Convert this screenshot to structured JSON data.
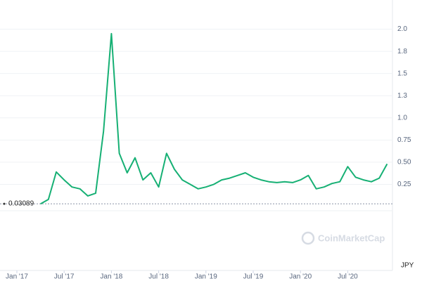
{
  "chart_data": {
    "type": "line",
    "x": [
      "2017-04",
      "2017-05",
      "2017-06",
      "2017-07",
      "2017-08",
      "2017-09",
      "2017-10",
      "2017-11",
      "2017-12",
      "2018-01",
      "2018-02",
      "2018-03",
      "2018-04",
      "2018-05",
      "2018-06",
      "2018-07",
      "2018-08",
      "2018-09",
      "2018-10",
      "2018-11",
      "2018-12",
      "2019-01",
      "2019-02",
      "2019-03",
      "2019-04",
      "2019-05",
      "2019-06",
      "2019-07",
      "2019-08",
      "2019-09",
      "2019-10",
      "2019-11",
      "2019-12",
      "2020-01",
      "2020-02",
      "2020-03",
      "2020-04",
      "2020-05",
      "2020-06",
      "2020-07",
      "2020-08",
      "2020-09",
      "2020-10",
      "2020-11",
      "2020-12"
    ],
    "series": [
      {
        "color": "#16b074",
        "values": [
          0.03,
          0.08,
          0.39,
          0.3,
          0.22,
          0.2,
          0.12,
          0.15,
          0.85,
          1.95,
          0.6,
          0.38,
          0.55,
          0.3,
          0.38,
          0.22,
          0.6,
          0.42,
          0.3,
          0.25,
          0.2,
          0.22,
          0.25,
          0.3,
          0.32,
          0.35,
          0.38,
          0.33,
          0.3,
          0.28,
          0.27,
          0.28,
          0.27,
          0.3,
          0.35,
          0.2,
          0.22,
          0.26,
          0.28,
          0.45,
          0.33,
          0.3,
          0.28,
          0.32,
          0.48
        ]
      }
    ],
    "xticks": [
      {
        "value": "2017-01",
        "label": "Jan '17"
      },
      {
        "value": "2017-07",
        "label": "Jul '17"
      },
      {
        "value": "2018-01",
        "label": "Jan '18"
      },
      {
        "value": "2018-07",
        "label": "Jul '18"
      },
      {
        "value": "2019-01",
        "label": "Jan '19"
      },
      {
        "value": "2019-07",
        "label": "Jul '19"
      },
      {
        "value": "2020-01",
        "label": "Jan '20"
      },
      {
        "value": "2020-07",
        "label": "Jul '20"
      }
    ],
    "ylim": [
      0,
      2.25
    ],
    "yticks": [
      0.25,
      {
        "value": 0.5,
        "label": "0.50"
      },
      0.75,
      {
        "value": 1,
        "label": "1.0"
      },
      {
        "value": 1.25,
        "label": "1.3"
      },
      1.5,
      {
        "value": 1.75,
        "label": "1.8"
      },
      {
        "value": 2,
        "label": "2.0"
      }
    ],
    "reference_value": 0.03089,
    "currency": "JPY",
    "watermark": "CoinMarketCap",
    "grid": true
  }
}
